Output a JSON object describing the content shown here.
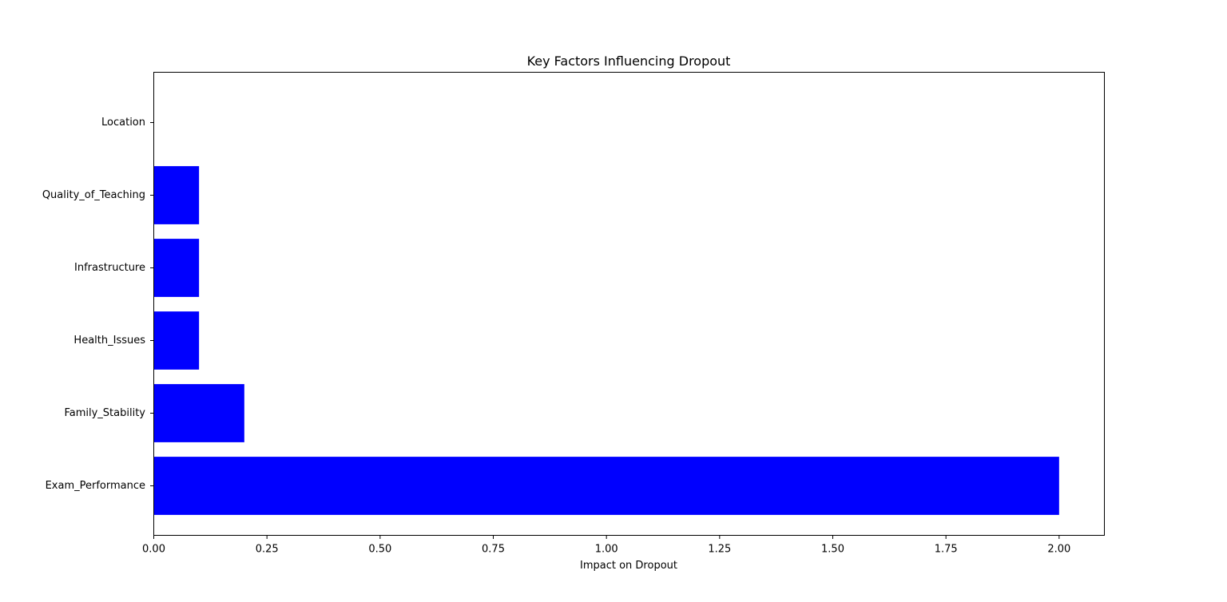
{
  "chart_data": {
    "type": "bar",
    "orientation": "horizontal",
    "title": "Key Factors Influencing Dropout",
    "xlabel": "Impact on Dropout",
    "ylabel": "",
    "categories": [
      "Exam_Performance",
      "Family_Stability",
      "Health_Issues",
      "Infrastructure",
      "Quality_of_Teaching",
      "Location"
    ],
    "values": [
      2.0,
      0.2,
      0.1,
      0.1,
      0.1,
      0.0
    ],
    "xlim": [
      0,
      2.1
    ],
    "xticks": [
      0.0,
      0.25,
      0.5,
      0.75,
      1.0,
      1.25,
      1.5,
      1.75,
      2.0
    ],
    "xtick_labels": [
      "0.00",
      "0.25",
      "0.50",
      "0.75",
      "1.00",
      "1.25",
      "1.50",
      "1.75",
      "2.00"
    ],
    "bar_color": "#0000ff",
    "grid": false,
    "legend": "none"
  }
}
